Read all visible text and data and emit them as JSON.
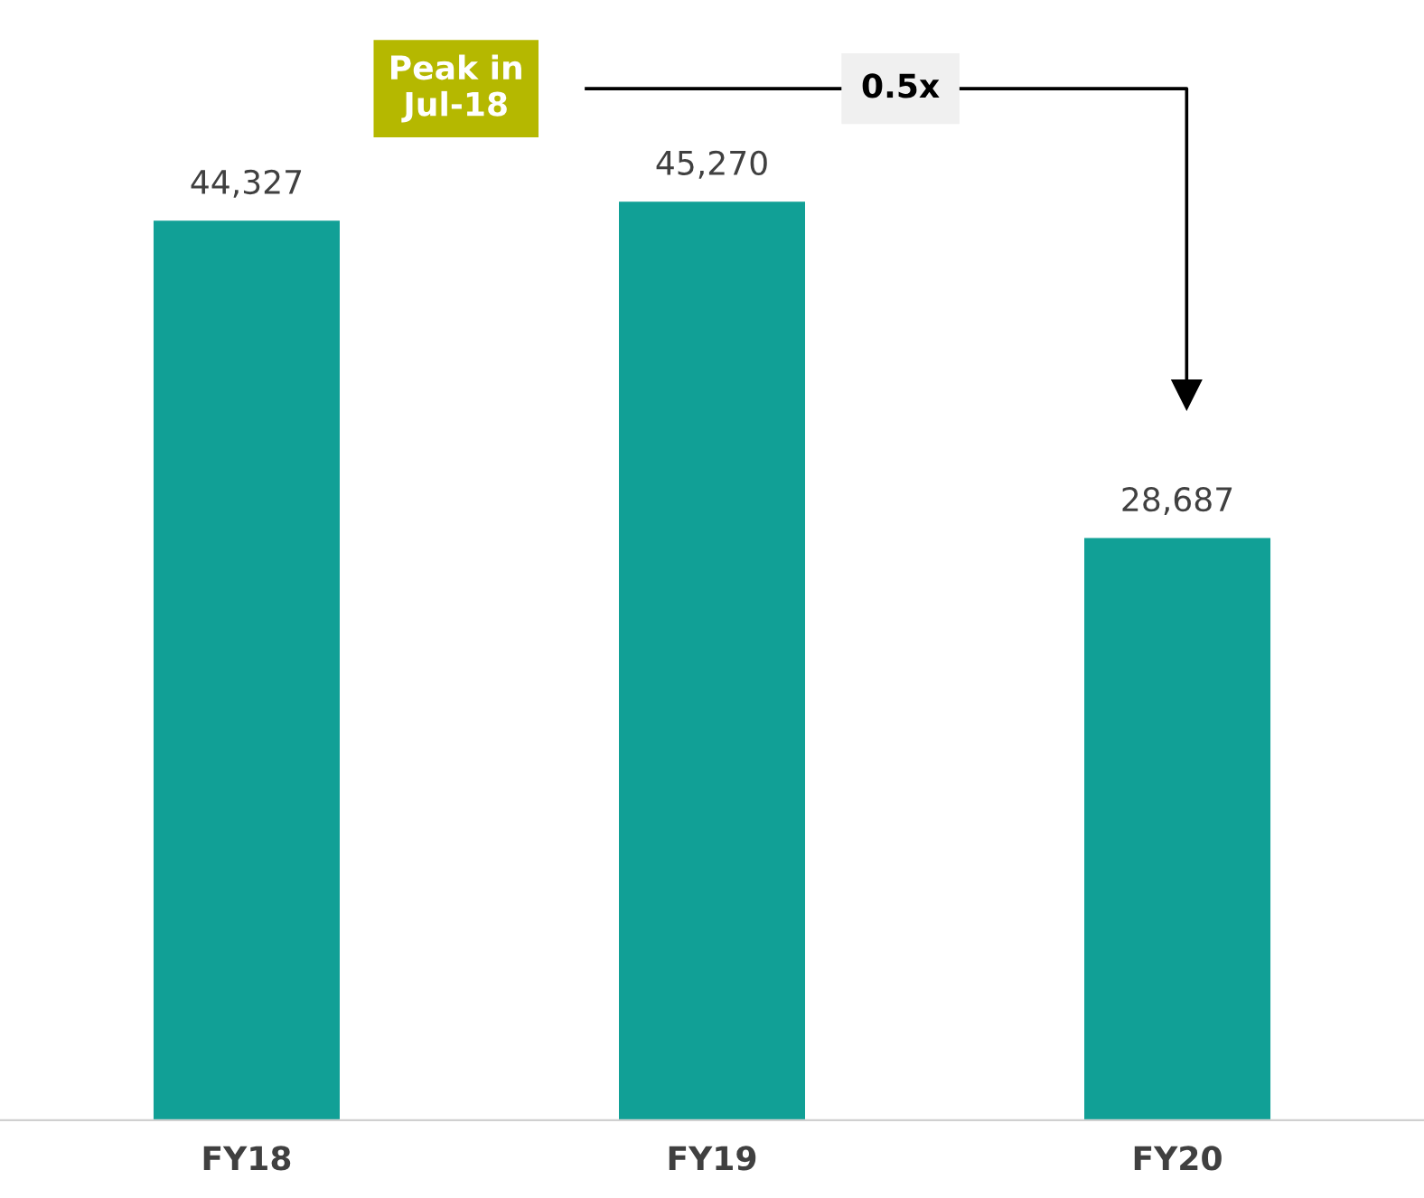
{
  "chart_data": {
    "type": "bar",
    "categories": [
      "FY18",
      "FY19",
      "FY20"
    ],
    "values": [
      44327,
      45270,
      28687
    ],
    "color": "#11a096",
    "value_labels": [
      "44,327",
      "45,270",
      "28,687"
    ],
    "annotations": [
      "Peak in\nJul-18",
      "0.5x"
    ],
    "grid": false,
    "legend": false
  }
}
